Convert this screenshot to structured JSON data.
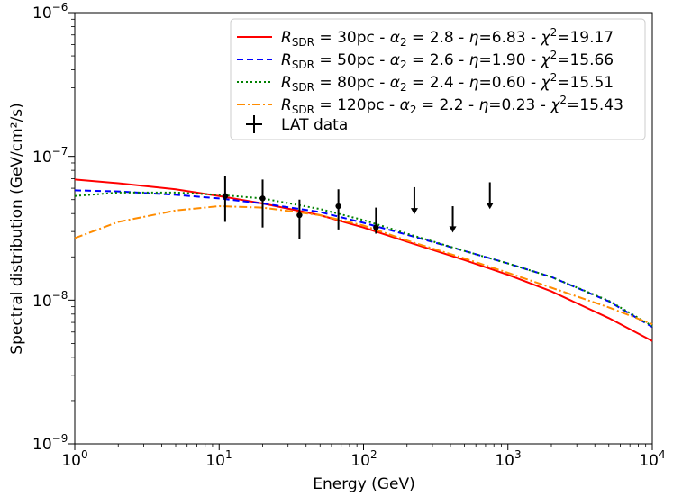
{
  "chart_data": {
    "type": "line",
    "xscale": "log",
    "yscale": "log",
    "xlabel": "Energy (GeV)",
    "ylabel": "Spectral distribution (GeV/cm²/s)",
    "xlim": [
      1,
      10000
    ],
    "ylim": [
      1e-09,
      1e-06
    ],
    "x_ticks": [
      {
        "value": 1,
        "base": "10",
        "exp": "0"
      },
      {
        "value": 10,
        "base": "10",
        "exp": "1"
      },
      {
        "value": 100,
        "base": "10",
        "exp": "2"
      },
      {
        "value": 1000,
        "base": "10",
        "exp": "3"
      },
      {
        "value": 10000,
        "base": "10",
        "exp": "4"
      }
    ],
    "y_ticks": [
      {
        "value": 1e-09,
        "base": "10",
        "exp": "−9"
      },
      {
        "value": 1e-08,
        "base": "10",
        "exp": "−8"
      },
      {
        "value": 1e-07,
        "base": "10",
        "exp": "−7"
      },
      {
        "value": 1e-06,
        "base": "10",
        "exp": "−6"
      }
    ],
    "series": [
      {
        "name": "R_SDR=30pc - α2=2.8 - η=6.83 - χ²=19.17",
        "legend": {
          "R": "R",
          "sub": "SDR",
          "eq1": " = 30pc - ",
          "alpha": "α",
          "asub": "2",
          "eq2": " = 2.8 - ",
          "eta": "η",
          "eq3": "=6.83 - ",
          "chi": "χ",
          "csup": "2",
          "eq4": "=19.17"
        },
        "color": "#ff0000",
        "dash": "none",
        "x": [
          1,
          2,
          5,
          10,
          20,
          50,
          100,
          200,
          500,
          1000,
          2000,
          5000,
          10000
        ],
        "y": [
          6.9e-08,
          6.5e-08,
          5.9e-08,
          5.3e-08,
          4.7e-08,
          3.9e-08,
          3.2e-08,
          2.55e-08,
          1.9e-08,
          1.5e-08,
          1.15e-08,
          7.5e-09,
          5.2e-09
        ]
      },
      {
        "name": "R_SDR=50pc - α2=2.6 - η=1.90 - χ²=15.66",
        "legend": {
          "R": "R",
          "sub": "SDR",
          "eq1": " = 50pc - ",
          "alpha": "α",
          "asub": "2",
          "eq2": " = 2.6 - ",
          "eta": "η",
          "eq3": "=1.90 - ",
          "chi": "χ",
          "csup": "2",
          "eq4": "=15.66"
        },
        "color": "#0000ff",
        "dash": "7,4",
        "x": [
          1,
          2,
          5,
          10,
          20,
          50,
          100,
          200,
          500,
          1000,
          2000,
          5000,
          10000
        ],
        "y": [
          5.8e-08,
          5.7e-08,
          5.4e-08,
          5.1e-08,
          4.7e-08,
          4.1e-08,
          3.45e-08,
          2.85e-08,
          2.2e-08,
          1.8e-08,
          1.45e-08,
          9.8e-09,
          6.5e-09
        ]
      },
      {
        "name": "R_SDR=80pc - α2=2.4 - η=0.60 - χ²=15.51",
        "legend": {
          "R": "R",
          "sub": "SDR",
          "eq1": " = 80pc - ",
          "alpha": "α",
          "asub": "2",
          "eq2": " = 2.4 - ",
          "eta": "η",
          "eq3": "=0.60 - ",
          "chi": "χ",
          "csup": "2",
          "eq4": "=15.51"
        },
        "color": "#008000",
        "dash": "2,3",
        "x": [
          1,
          2,
          5,
          10,
          20,
          50,
          100,
          200,
          500,
          1000,
          2000,
          5000,
          10000
        ],
        "y": [
          5.3e-08,
          5.6e-08,
          5.6e-08,
          5.4e-08,
          5.1e-08,
          4.3e-08,
          3.6e-08,
          2.9e-08,
          2.2e-08,
          1.8e-08,
          1.45e-08,
          9.9e-09,
          6.6e-09
        ]
      },
      {
        "name": "R_SDR=120pc - α2=2.2 - η=0.23 - χ²=15.43",
        "legend": {
          "R": "R",
          "sub": "SDR",
          "eq1": " = 120pc - ",
          "alpha": "α",
          "asub": "2",
          "eq2": " = 2.2 - ",
          "eta": "η",
          "eq3": "=0.23 - ",
          "chi": "χ",
          "csup": "2",
          "eq4": "=15.43"
        },
        "color": "#ff8c00",
        "dash": "9,3,2,3",
        "x": [
          1,
          2,
          5,
          10,
          20,
          50,
          100,
          200,
          500,
          1000,
          2000,
          5000,
          10000
        ],
        "y": [
          2.7e-08,
          3.5e-08,
          4.2e-08,
          4.5e-08,
          4.4e-08,
          3.9e-08,
          3.3e-08,
          2.6e-08,
          1.95e-08,
          1.55e-08,
          1.22e-08,
          8.9e-09,
          6.8e-09
        ]
      }
    ],
    "lat_data": {
      "name": "LAT data",
      "color": "#000000",
      "points": [
        {
          "x": 11,
          "y": 5.3e-08,
          "ylo": 3.5e-08,
          "yhi": 7.3e-08
        },
        {
          "x": 20,
          "y": 5.1e-08,
          "ylo": 3.2e-08,
          "yhi": 6.9e-08
        },
        {
          "x": 36,
          "y": 3.9e-08,
          "ylo": 2.65e-08,
          "yhi": 5e-08
        },
        {
          "x": 67,
          "y": 4.5e-08,
          "ylo": 3.1e-08,
          "yhi": 5.9e-08
        },
        {
          "x": 122,
          "y": 3.2e-08,
          "ylo": 2.9e-08,
          "yhi": 4.4e-08
        }
      ],
      "upper_limits": [
        {
          "x": 225,
          "y": 6.1e-08,
          "yend": 3.95e-08
        },
        {
          "x": 415,
          "y": 4.5e-08,
          "yend": 2.95e-08
        },
        {
          "x": 750,
          "y": 6.6e-08,
          "yend": 4.3e-08
        }
      ]
    },
    "legend_position": "top-right"
  }
}
